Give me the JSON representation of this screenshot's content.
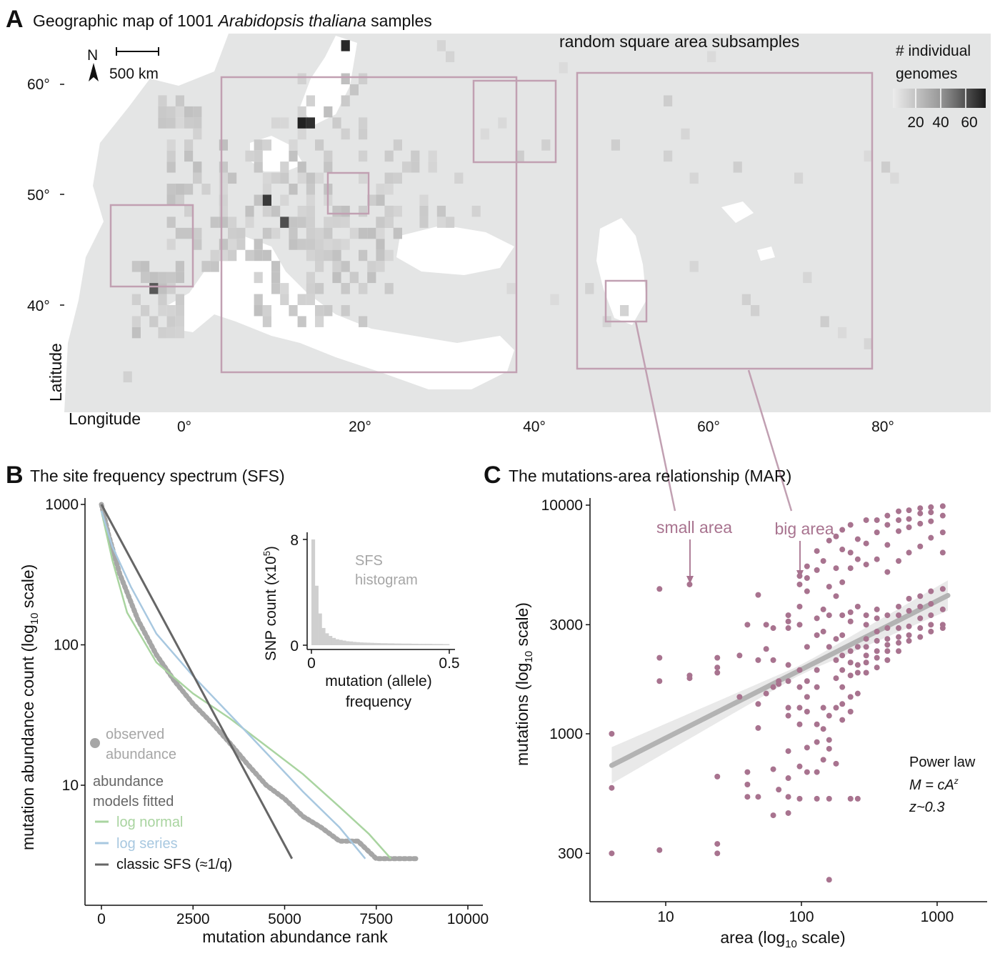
{
  "colors": {
    "land": "#e4e5e5",
    "water": "#ffffff",
    "box": "#c1a0b2",
    "mauve": "#a8738f",
    "observed": "#a6a6a6",
    "log_normal": "#a9d4a0",
    "log_series": "#a8c8e0",
    "classic": "#666666",
    "fit": "#b3b3b3",
    "ci": "#e9e9e9"
  },
  "panelA": {
    "label": "A",
    "title_pre": "Geographic map of 1001 ",
    "title_italic": "Arabidopsis thaliana",
    "title_post": " samples",
    "north": "N",
    "scale": "500 km",
    "subsample_label": "random square area subsamples",
    "legend_title_1": "# individual",
    "legend_title_2": "genomes",
    "legend_ticks": [
      "20",
      "40",
      "60"
    ],
    "xlabel": "Longitude",
    "ylabel": "Latitude",
    "lon_ticks": [
      "0°",
      "20°",
      "40°",
      "60°",
      "80°"
    ],
    "lat_ticks": [
      "60°",
      "50°",
      "40°"
    ],
    "chart_data": {
      "type": "heatmap",
      "x_ticks_deg": [
        0,
        20,
        40,
        60,
        80
      ],
      "y_ticks_deg": [
        60,
        50,
        40
      ],
      "legend_range": [
        1,
        65
      ],
      "dark_cells": [
        {
          "lon": 18,
          "lat": 63,
          "count": 60
        },
        {
          "lon": 13,
          "lat": 56,
          "count": 62
        },
        {
          "lon": 14,
          "lat": 56,
          "count": 58
        },
        {
          "lon": 9,
          "lat": 49,
          "count": 55
        },
        {
          "lon": 11,
          "lat": 47,
          "count": 48
        },
        {
          "lon": -4,
          "lat": 41,
          "count": 45
        }
      ]
    }
  },
  "panelB": {
    "label": "B",
    "title": "The site frequency spectrum (SFS)",
    "xlabel": "mutation abundance rank",
    "ylabel_pre": "mutation abundance count (log",
    "ylabel_sub": "10",
    "ylabel_post": " scale)",
    "xticks": [
      "0",
      "2500",
      "5000",
      "7500",
      "10000"
    ],
    "yticks": [
      "1000",
      "100",
      "10"
    ],
    "legend": {
      "observed_1": "observed",
      "observed_2": "abundance",
      "models_1": "abundance",
      "models_2": "models fitted",
      "log_normal": "log normal",
      "log_series": "log series",
      "classic": "classic SFS (≈1/q)"
    },
    "inset": {
      "ylabel_pre": "SNP count (x10",
      "ylabel_sup": "5",
      "ylabel_post": ")",
      "xlabel_1": "mutation (allele)",
      "xlabel_2": "frequency",
      "yticks": [
        "8",
        "0"
      ],
      "xticks": [
        "0",
        "0.5"
      ],
      "text_1": "SFS",
      "text_2": "histogram"
    },
    "chart_data": {
      "type": "line",
      "x_range": [
        0,
        10000
      ],
      "y_range_log10": [
        0.5,
        3
      ],
      "series": [
        {
          "name": "observed abundance",
          "x": [
            0,
            200,
            500,
            1000,
            1500,
            2000,
            2500,
            3000,
            3500,
            4000,
            4500,
            5000,
            5500,
            6000,
            6500,
            7000,
            7500,
            8000,
            8600
          ],
          "y": [
            1000,
            600,
            320,
            150,
            85,
            55,
            38,
            28,
            20,
            14,
            10,
            8,
            6,
            5,
            4,
            4,
            3,
            3,
            3
          ]
        },
        {
          "name": "log normal",
          "x": [
            0,
            300,
            700,
            1500,
            2500,
            3500,
            4500,
            5500,
            6500,
            7300,
            7900
          ],
          "y": [
            900,
            400,
            170,
            75,
            45,
            30,
            19,
            12,
            7,
            4.5,
            3
          ]
        },
        {
          "name": "log series",
          "x": [
            0,
            300,
            800,
            1500,
            2500,
            3500,
            4500,
            5500,
            6500,
            7200
          ],
          "y": [
            900,
            500,
            260,
            120,
            60,
            32,
            17,
            9,
            5,
            3
          ]
        },
        {
          "name": "classic SFS (≈1/q)",
          "x": [
            0,
            5200
          ],
          "y": [
            1000,
            3
          ]
        }
      ]
    },
    "inset_data": {
      "type": "bar",
      "x_range": [
        0,
        0.5
      ],
      "y_range": [
        0,
        8
      ],
      "bin_width": 0.0125,
      "values": [
        8.0,
        4.5,
        2.4,
        1.3,
        0.9,
        0.7,
        0.55,
        0.45,
        0.4,
        0.35,
        0.3,
        0.28,
        0.25,
        0.23,
        0.21,
        0.2,
        0.19,
        0.18,
        0.17,
        0.16,
        0.15,
        0.15,
        0.14,
        0.14,
        0.13,
        0.13,
        0.12,
        0.12,
        0.12,
        0.11,
        0.11,
        0.1,
        0.1,
        0.1,
        0.1,
        0.09,
        0.09,
        0.09,
        0.08,
        0.08
      ]
    }
  },
  "panelC": {
    "label": "C",
    "title": "The mutations-area relationship (MAR)",
    "xlabel_pre": "area (log",
    "xlabel_sub": "10",
    "xlabel_post": " scale)",
    "ylabel_pre": "mutations (log",
    "ylabel_sub": "10",
    "ylabel_post": " scale)",
    "xticks": [
      "10",
      "100",
      "1000"
    ],
    "yticks": [
      "10000",
      "3000",
      "1000",
      "300"
    ],
    "small_area": "small area",
    "big_area": "big area",
    "powerlaw_1": "Power law",
    "powerlaw_2": "M = cA",
    "powerlaw_2_sup": "z",
    "powerlaw_3": "z~0.3",
    "chart_data": {
      "type": "scatter",
      "x_log_range": [
        0.55,
        3.18
      ],
      "y_log_range": [
        2.3,
        4.02
      ],
      "fit": {
        "c": 480,
        "z": 0.3,
        "x_range": [
          4,
          1200
        ]
      },
      "points": [
        [
          4,
          1000
        ],
        [
          4,
          300
        ],
        [
          4,
          580
        ],
        [
          9,
          4300
        ],
        [
          9,
          2150
        ],
        [
          9,
          1700
        ],
        [
          9,
          310
        ],
        [
          15,
          4500
        ],
        [
          15,
          1800
        ],
        [
          15,
          1750
        ],
        [
          24,
          2150
        ],
        [
          24,
          1950
        ],
        [
          24,
          1850
        ],
        [
          24,
          650
        ],
        [
          24,
          330
        ],
        [
          24,
          300
        ],
        [
          35,
          2200
        ],
        [
          35,
          1450
        ],
        [
          40,
          3000
        ],
        [
          40,
          680
        ],
        [
          40,
          600
        ],
        [
          40,
          530
        ],
        [
          48,
          4050
        ],
        [
          48,
          2100
        ],
        [
          48,
          1350
        ],
        [
          48,
          1060
        ],
        [
          48,
          530
        ],
        [
          55,
          3000
        ],
        [
          55,
          2350
        ],
        [
          55,
          1500
        ],
        [
          62,
          2900
        ],
        [
          62,
          2100
        ],
        [
          62,
          1600
        ],
        [
          62,
          700
        ],
        [
          62,
          440
        ],
        [
          68,
          1700
        ],
        [
          68,
          1650
        ],
        [
          68,
          570
        ],
        [
          80,
          3300
        ],
        [
          80,
          3100
        ],
        [
          80,
          2900
        ],
        [
          80,
          2000
        ],
        [
          80,
          1700
        ],
        [
          80,
          1300
        ],
        [
          80,
          1200
        ],
        [
          80,
          840
        ],
        [
          80,
          640
        ],
        [
          80,
          530
        ],
        [
          80,
          450
        ],
        [
          97,
          4900
        ],
        [
          97,
          4500
        ],
        [
          97,
          3600
        ],
        [
          97,
          3000
        ],
        [
          97,
          1900
        ],
        [
          97,
          1600
        ],
        [
          97,
          1300
        ],
        [
          97,
          1100
        ],
        [
          97,
          720
        ],
        [
          97,
          520
        ],
        [
          110,
          5400
        ],
        [
          110,
          4800
        ],
        [
          110,
          4200
        ],
        [
          110,
          2400
        ],
        [
          110,
          1700
        ],
        [
          110,
          1450
        ],
        [
          110,
          1250
        ],
        [
          110,
          870
        ],
        [
          110,
          680
        ],
        [
          130,
          6300
        ],
        [
          130,
          5200
        ],
        [
          130,
          3200
        ],
        [
          130,
          2700
        ],
        [
          130,
          1900
        ],
        [
          130,
          1600
        ],
        [
          130,
          1100
        ],
        [
          130,
          920
        ],
        [
          130,
          680
        ],
        [
          130,
          520
        ],
        [
          145,
          5700
        ],
        [
          145,
          3500
        ],
        [
          145,
          2800
        ],
        [
          145,
          1300
        ],
        [
          145,
          1050
        ],
        [
          145,
          770
        ],
        [
          160,
          7000
        ],
        [
          160,
          4400
        ],
        [
          160,
          3300
        ],
        [
          160,
          2400
        ],
        [
          160,
          1200
        ],
        [
          160,
          940
        ],
        [
          160,
          860
        ],
        [
          160,
          520
        ],
        [
          160,
          230
        ],
        [
          180,
          7300
        ],
        [
          180,
          5300
        ],
        [
          180,
          4000
        ],
        [
          180,
          2600
        ],
        [
          180,
          2100
        ],
        [
          180,
          1750
        ],
        [
          180,
          1300
        ],
        [
          180,
          740
        ],
        [
          200,
          7800
        ],
        [
          200,
          6400
        ],
        [
          200,
          4600
        ],
        [
          200,
          3300
        ],
        [
          200,
          2700
        ],
        [
          200,
          2200
        ],
        [
          200,
          1900
        ],
        [
          200,
          1600
        ],
        [
          200,
          1350
        ],
        [
          200,
          1150
        ],
        [
          230,
          8200
        ],
        [
          230,
          6200
        ],
        [
          230,
          5300
        ],
        [
          230,
          3400
        ],
        [
          230,
          3100
        ],
        [
          230,
          2300
        ],
        [
          230,
          2050
        ],
        [
          230,
          1800
        ],
        [
          230,
          1450
        ],
        [
          230,
          1250
        ],
        [
          230,
          520
        ],
        [
          260,
          7100
        ],
        [
          260,
          5800
        ],
        [
          260,
          3600
        ],
        [
          260,
          2400
        ],
        [
          260,
          2000
        ],
        [
          260,
          1850
        ],
        [
          260,
          1500
        ],
        [
          260,
          520
        ],
        [
          300,
          8600
        ],
        [
          300,
          6800
        ],
        [
          300,
          5500
        ],
        [
          300,
          3300
        ],
        [
          300,
          3000
        ],
        [
          300,
          2600
        ],
        [
          300,
          2400
        ],
        [
          300,
          2200
        ],
        [
          300,
          2050
        ],
        [
          300,
          1850
        ],
        [
          360,
          8600
        ],
        [
          360,
          7600
        ],
        [
          360,
          5800
        ],
        [
          360,
          3500
        ],
        [
          360,
          3200
        ],
        [
          360,
          2800
        ],
        [
          360,
          2550
        ],
        [
          360,
          2300
        ],
        [
          360,
          2150
        ],
        [
          360,
          1950
        ],
        [
          430,
          9000
        ],
        [
          430,
          8200
        ],
        [
          430,
          6700
        ],
        [
          430,
          5100
        ],
        [
          430,
          3300
        ],
        [
          430,
          2900
        ],
        [
          430,
          2600
        ],
        [
          430,
          2450
        ],
        [
          430,
          2300
        ],
        [
          430,
          2100
        ],
        [
          520,
          9400
        ],
        [
          520,
          8600
        ],
        [
          520,
          7700
        ],
        [
          520,
          5700
        ],
        [
          520,
          3600
        ],
        [
          520,
          3300
        ],
        [
          520,
          2900
        ],
        [
          520,
          2650
        ],
        [
          520,
          2500
        ],
        [
          520,
          2300
        ],
        [
          620,
          9500
        ],
        [
          620,
          8700
        ],
        [
          620,
          8000
        ],
        [
          620,
          6200
        ],
        [
          620,
          3900
        ],
        [
          620,
          3450
        ],
        [
          620,
          2950
        ],
        [
          620,
          2700
        ],
        [
          620,
          2550
        ],
        [
          750,
          9700
        ],
        [
          750,
          9200
        ],
        [
          750,
          8300
        ],
        [
          750,
          6600
        ],
        [
          750,
          4000
        ],
        [
          750,
          3600
        ],
        [
          750,
          3200
        ],
        [
          750,
          2900
        ],
        [
          750,
          2650
        ],
        [
          900,
          9800
        ],
        [
          900,
          9300
        ],
        [
          900,
          8500
        ],
        [
          900,
          7200
        ],
        [
          900,
          4200
        ],
        [
          900,
          3700
        ],
        [
          900,
          3300
        ],
        [
          900,
          3000
        ],
        [
          900,
          2800
        ],
        [
          1100,
          9900
        ],
        [
          1100,
          9000
        ],
        [
          1100,
          7600
        ],
        [
          1100,
          6200
        ],
        [
          1100,
          4300
        ],
        [
          1100,
          3500
        ],
        [
          1100,
          3000
        ],
        [
          1100,
          2900
        ]
      ]
    }
  }
}
